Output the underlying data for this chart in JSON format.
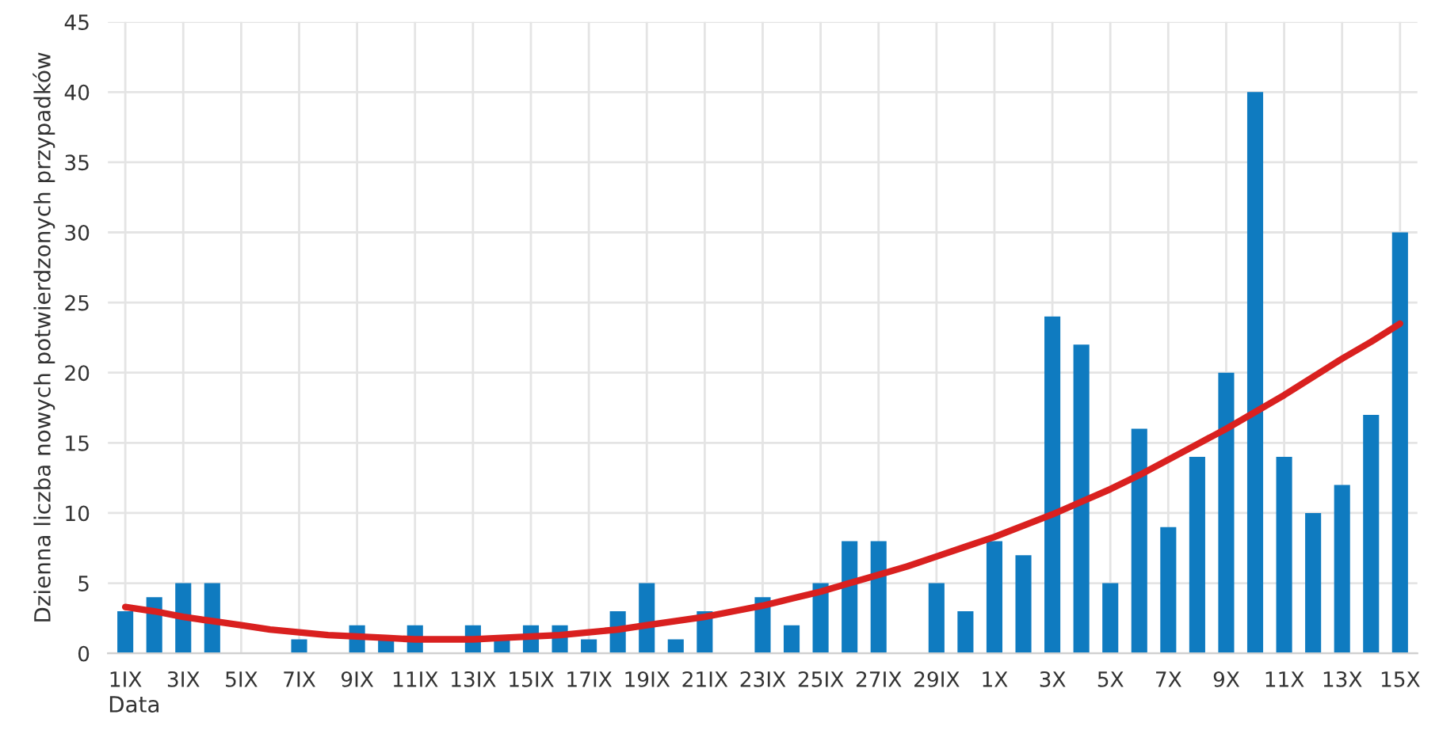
{
  "chart_data": {
    "type": "bar",
    "xlabel": "Data",
    "ylabel": "Dzienna liczba nowych potwierdzonych przypadków",
    "categories": [
      "1IX",
      null,
      "3IX",
      null,
      "5IX",
      null,
      "7IX",
      null,
      "9IX",
      null,
      "11IX",
      null,
      "13IX",
      null,
      "15IX",
      null,
      "17IX",
      null,
      "19IX",
      null,
      "21IX",
      null,
      "23IX",
      null,
      "25IX",
      null,
      "27IX",
      null,
      "29IX",
      null,
      "1X",
      null,
      "3X",
      null,
      "5X",
      null,
      "7X",
      null,
      "9X",
      null,
      "11X",
      null,
      "13X",
      null,
      "15X"
    ],
    "series": [
      {
        "color": "#0f7bc0",
        "values": [
          3,
          4,
          5,
          5,
          0,
          0,
          1,
          0,
          2,
          1,
          2,
          0,
          2,
          1,
          2,
          2,
          1,
          3,
          5,
          1,
          3,
          0,
          4,
          2,
          5,
          8,
          8,
          0,
          5,
          3,
          8,
          7,
          24,
          22,
          5,
          16,
          9,
          14,
          20,
          40,
          14,
          10,
          12,
          17,
          30
        ]
      },
      {
        "type": "line",
        "color": "#d9201f",
        "values": [
          3.3,
          3.0,
          2.6,
          2.3,
          2.0,
          1.7,
          1.5,
          1.3,
          1.2,
          1.1,
          1.0,
          1.0,
          1.0,
          1.1,
          1.2,
          1.3,
          1.5,
          1.7,
          2.0,
          2.3,
          2.6,
          3.0,
          3.4,
          3.9,
          4.4,
          5.0,
          5.6,
          6.2,
          6.9,
          7.6,
          8.3,
          9.1,
          9.9,
          10.8,
          11.7,
          12.7,
          13.8,
          14.9,
          16.0,
          17.2,
          18.4,
          19.7,
          21.0,
          22.2,
          23.5
        ]
      }
    ],
    "ylim": [
      0,
      45
    ],
    "yticks": [
      0,
      5,
      10,
      15,
      20,
      25,
      30,
      35,
      40,
      45
    ],
    "grid": true
  }
}
